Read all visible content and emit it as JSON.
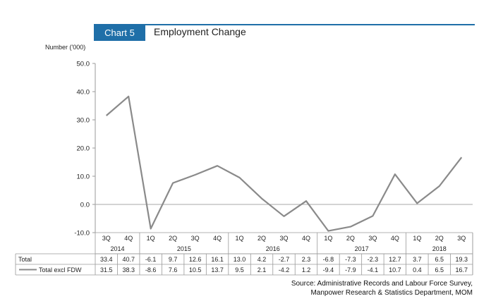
{
  "header": {
    "badge": "Chart 5",
    "title": "Employment Change"
  },
  "chart_data": {
    "type": "line",
    "title": "Employment Change",
    "ylabel": "Number ('000)",
    "ylim": [
      -10,
      50
    ],
    "yticks": [
      "50.0",
      "40.0",
      "30.0",
      "20.0",
      "10.0",
      "0.0",
      "-10.0"
    ],
    "quarters": [
      "3Q",
      "4Q",
      "1Q",
      "2Q",
      "3Q",
      "4Q",
      "1Q",
      "2Q",
      "3Q",
      "4Q",
      "1Q",
      "2Q",
      "3Q",
      "4Q",
      "1Q",
      "2Q",
      "3Q"
    ],
    "years": [
      {
        "label": "2014",
        "start": 0,
        "end": 1
      },
      {
        "label": "2015",
        "start": 2,
        "end": 5
      },
      {
        "label": "2016",
        "start": 6,
        "end": 9
      },
      {
        "label": "2017",
        "start": 10,
        "end": 13
      },
      {
        "label": "2018",
        "start": 14,
        "end": 16
      }
    ],
    "series": [
      {
        "name": "Total",
        "values": [
          33.4,
          40.7,
          -6.1,
          9.7,
          12.6,
          16.1,
          13.0,
          4.2,
          -2.7,
          2.3,
          -6.8,
          -7.3,
          -2.3,
          12.7,
          3.7,
          6.5,
          19.3
        ],
        "labels": [
          "33.4",
          "40.7",
          "-6.1",
          "9.7",
          "12.6",
          "16.1",
          "13.0",
          "4.2",
          "-2.7",
          "2.3",
          "-6.8",
          "-7.3",
          "-2.3",
          "12.7",
          "3.7",
          "6.5",
          "19.3"
        ],
        "plotted": false
      },
      {
        "name": "Total excl FDW",
        "values": [
          31.5,
          38.3,
          -8.6,
          7.6,
          10.5,
          13.7,
          9.5,
          2.1,
          -4.2,
          1.2,
          -9.4,
          -7.9,
          -4.1,
          10.7,
          0.4,
          6.5,
          16.7
        ],
        "labels": [
          "31.5",
          "38.3",
          "-8.6",
          "7.6",
          "10.5",
          "13.7",
          "9.5",
          "2.1",
          "-4.2",
          "1.2",
          "-9.4",
          "-7.9",
          "-4.1",
          "10.7",
          "0.4",
          "6.5",
          "16.7"
        ],
        "plotted": true,
        "color": "#8a8a8a"
      }
    ],
    "grid": false,
    "legend": "table"
  },
  "source": {
    "line1": "Source: Administrative Records and Labour Force Survey,",
    "line2": "Manpower Research & Statistics Department, MOM"
  }
}
